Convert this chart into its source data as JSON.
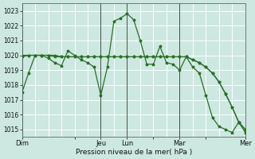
{
  "xlabel": "Pression niveau de la mer( hPa )",
  "ylim": [
    1014.5,
    1023.5
  ],
  "yticks": [
    1015,
    1016,
    1017,
    1018,
    1019,
    1020,
    1021,
    1022,
    1023
  ],
  "bg_color": "#cce8e0",
  "grid_color": "#ffffff",
  "line_color": "#2a6e2a",
  "day_labels": [
    "Dim",
    "",
    "Jeu",
    "Lun",
    "",
    "Mar",
    "",
    "Mer"
  ],
  "day_positions": [
    0,
    8,
    12,
    16,
    20,
    24,
    28,
    34
  ],
  "vline_positions": [
    0,
    12,
    16,
    24,
    34
  ],
  "n_points": 35,
  "series1": [
    1017.5,
    1018.8,
    1020.0,
    1020.0,
    1019.8,
    1019.5,
    1019.3,
    1020.3,
    1020.0,
    1019.7,
    1019.5,
    1019.2,
    1017.3,
    1019.2,
    1022.3,
    1022.5,
    1022.8,
    1022.4,
    1021.0,
    1019.4,
    1019.4,
    1020.6,
    1019.5,
    1019.4,
    1019.0,
    1019.9,
    1019.2,
    1018.8,
    1017.3,
    1015.8,
    1015.2,
    1015.0,
    1014.8,
    1015.5,
    1014.8
  ],
  "series2": [
    1020.0,
    1020.0,
    1020.0,
    1020.0,
    1020.0,
    1019.9,
    1019.9,
    1019.9,
    1019.9,
    1019.9,
    1019.9,
    1019.9,
    1019.9,
    1019.9,
    1019.9,
    1019.9,
    1019.9,
    1019.9,
    1019.9,
    1019.9,
    1019.9,
    1019.9,
    1019.9,
    1019.9,
    1019.9,
    1019.9,
    1019.7,
    1019.5,
    1019.2,
    1018.8,
    1018.2,
    1017.4,
    1016.5,
    1015.5,
    1015.0
  ],
  "series3": [
    1019.9,
    1020.0,
    1020.0,
    1020.0,
    1020.0,
    1020.0,
    1019.9,
    1019.9,
    1019.9,
    1019.9,
    1019.9,
    1019.9,
    1019.9,
    1019.9,
    1019.9,
    1019.9,
    1019.9,
    1019.9,
    1019.9,
    1019.9,
    1019.9,
    1019.9,
    1019.9,
    1019.9,
    1019.9,
    1019.9,
    1019.7,
    1019.5,
    1019.2,
    1018.8,
    1018.2,
    1017.4,
    1016.5,
    1015.5,
    1015.0
  ]
}
